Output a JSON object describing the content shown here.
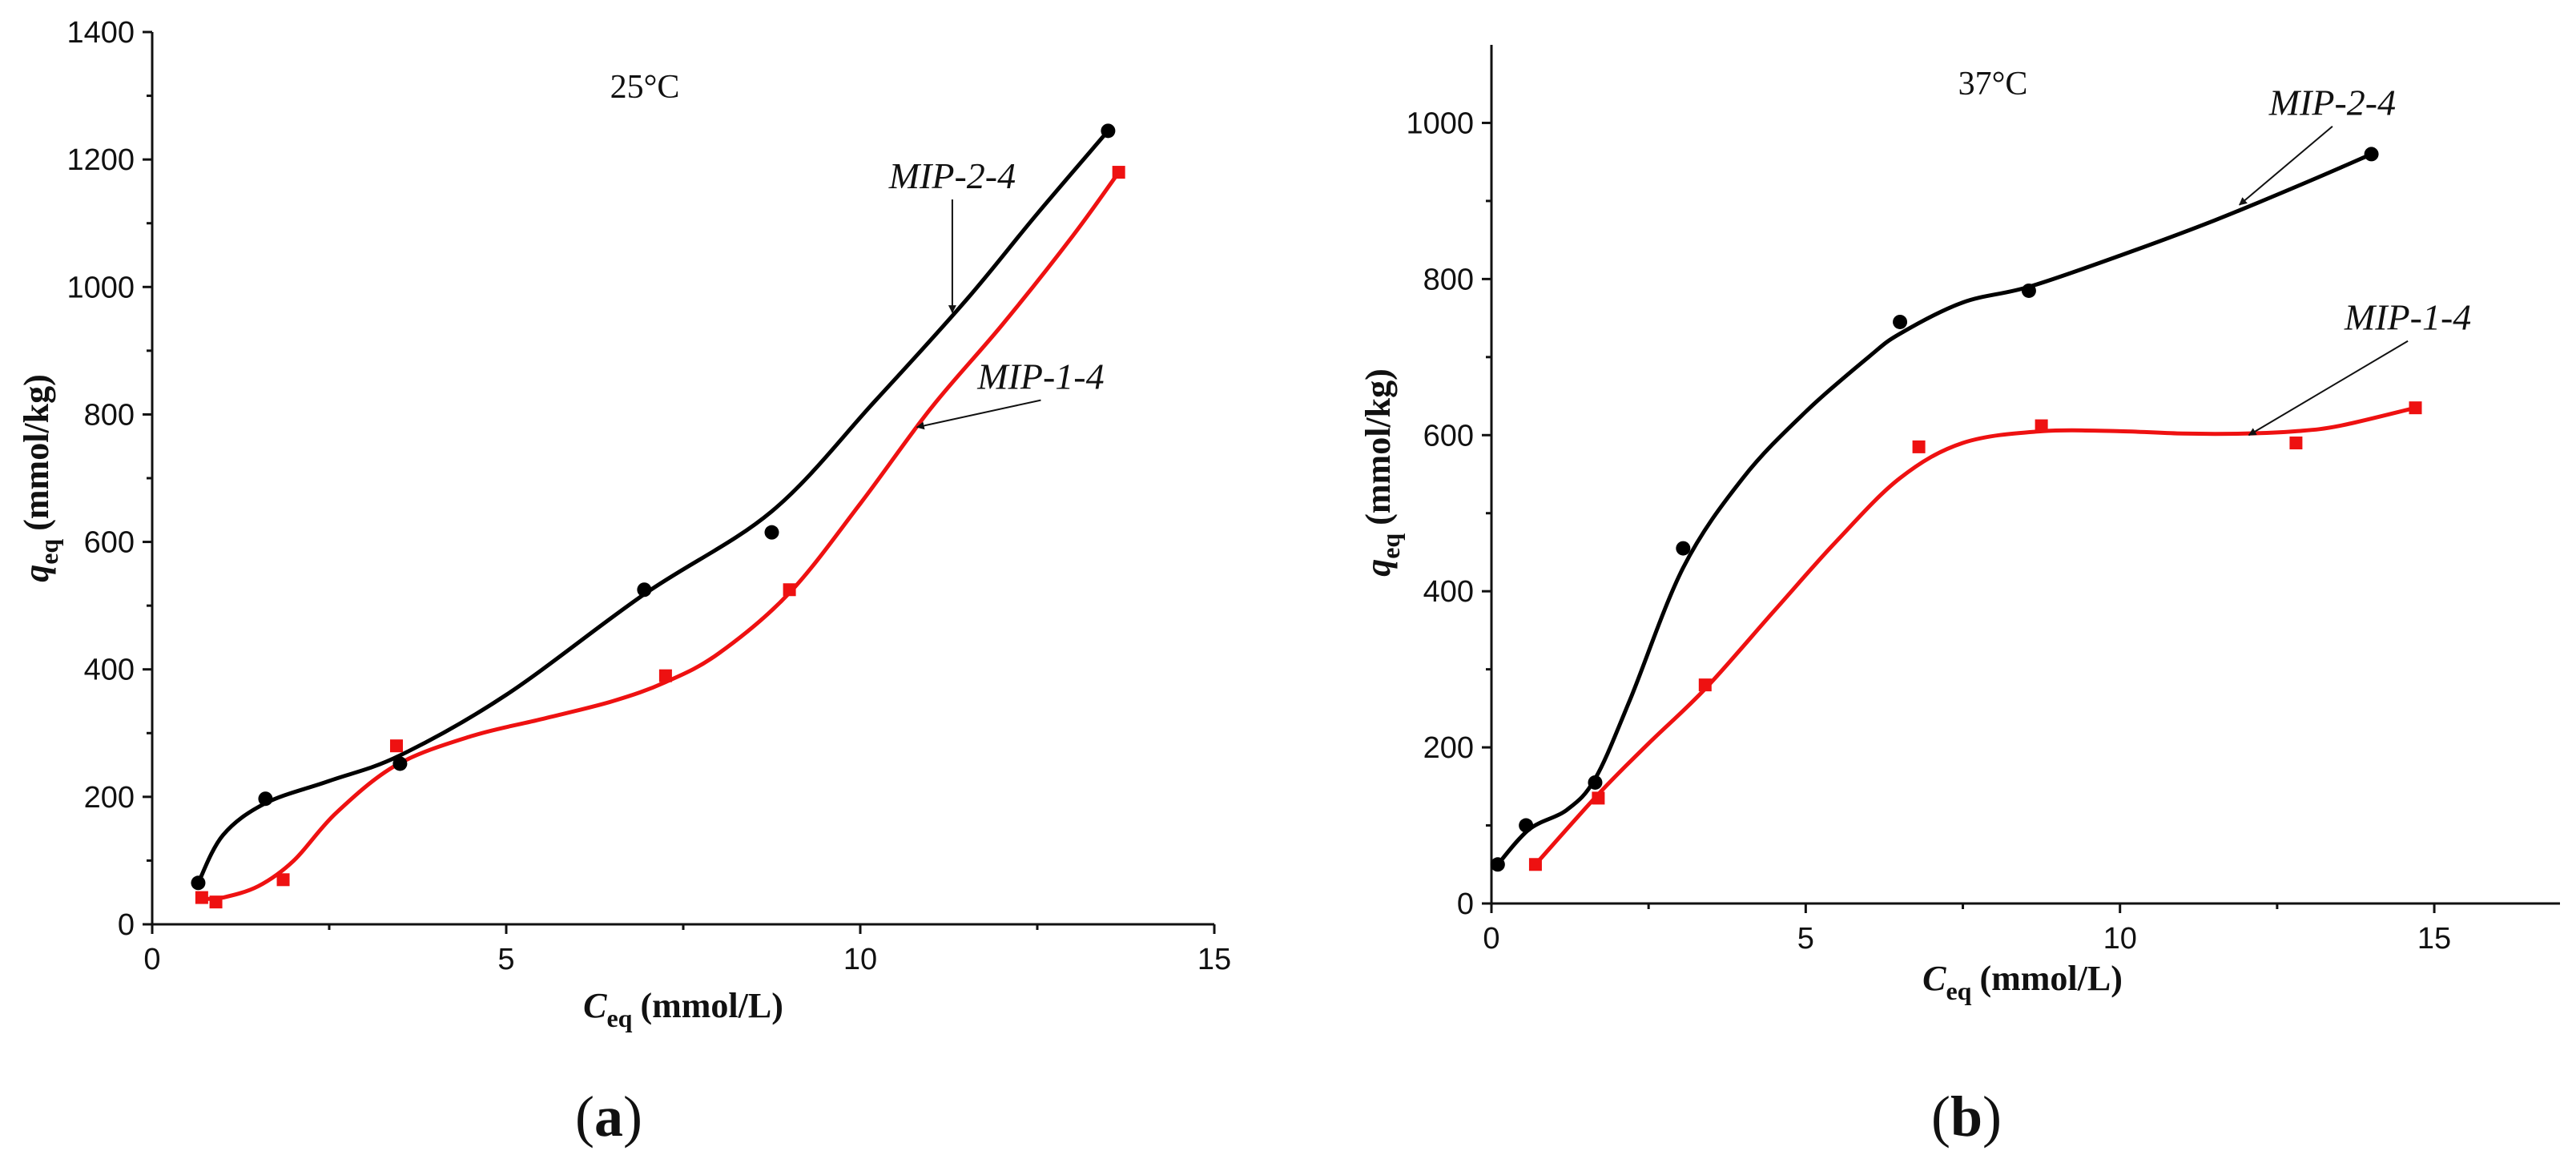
{
  "chart_data": [
    {
      "type": "scatter",
      "panel_label_open": "(",
      "panel_label_letter": "a",
      "panel_label_close": ")",
      "temperature": "25°C",
      "xlabel_symbol": "C",
      "xlabel_sub": "eq",
      "xlabel_units": "(mmol/L)",
      "ylabel_symbol": "q",
      "ylabel_sub": "eq",
      "ylabel_units": "(mmol/kg)",
      "xlim": [
        0,
        15
      ],
      "ylim": [
        0,
        1400
      ],
      "xticks": [
        0,
        5,
        10,
        15
      ],
      "yticks": [
        0,
        200,
        400,
        600,
        800,
        1000,
        1200,
        1400
      ],
      "series": [
        {
          "name": "MIP-2-4",
          "color": "#000000",
          "marker": "circle",
          "points": [
            [
              0.65,
              65
            ],
            [
              1.6,
              197
            ],
            [
              3.5,
              252
            ],
            [
              6.95,
              525
            ],
            [
              8.75,
              615
            ],
            [
              13.5,
              1245
            ]
          ],
          "fit": [
            [
              0.65,
              65
            ],
            [
              1.0,
              140
            ],
            [
              1.6,
              190
            ],
            [
              2.5,
              225
            ],
            [
              3.5,
              265
            ],
            [
              5.0,
              360
            ],
            [
              6.95,
              518
            ],
            [
              8.75,
              648
            ],
            [
              10.2,
              820
            ],
            [
              11.5,
              980
            ],
            [
              12.5,
              1115
            ],
            [
              13.5,
              1245
            ]
          ]
        },
        {
          "name": "MIP-1-4",
          "color": "#ee1111",
          "marker": "square",
          "points": [
            [
              0.7,
              42
            ],
            [
              0.9,
              35
            ],
            [
              1.85,
              70
            ],
            [
              3.45,
              280
            ],
            [
              7.25,
              390
            ],
            [
              9.0,
              525
            ],
            [
              13.65,
              1180
            ]
          ],
          "fit": [
            [
              0.7,
              40
            ],
            [
              1.0,
              42
            ],
            [
              1.5,
              60
            ],
            [
              2.0,
              100
            ],
            [
              2.6,
              175
            ],
            [
              3.45,
              250
            ],
            [
              4.5,
              295
            ],
            [
              5.5,
              322
            ],
            [
              6.5,
              350
            ],
            [
              7.25,
              380
            ],
            [
              8.0,
              425
            ],
            [
              9.0,
              520
            ],
            [
              10.0,
              660
            ],
            [
              11.0,
              810
            ],
            [
              12.0,
              940
            ],
            [
              13.0,
              1080
            ],
            [
              13.65,
              1180
            ]
          ]
        }
      ],
      "annotations": [
        {
          "text": "MIP-2-4",
          "series": "MIP-2-4",
          "label_at": [
            11.3,
            1155
          ],
          "arrow_to": [
            11.3,
            960
          ]
        },
        {
          "text": "MIP-1-4",
          "series": "MIP-1-4",
          "label_at": [
            12.55,
            840
          ],
          "arrow_to": [
            10.8,
            780
          ]
        }
      ]
    },
    {
      "type": "scatter",
      "panel_label_open": "(",
      "panel_label_letter": "b",
      "panel_label_close": ")",
      "temperature": "37°C",
      "xlabel_symbol": "C",
      "xlabel_sub": "eq",
      "xlabel_units": "(mmol/L)",
      "ylabel_symbol": "q",
      "ylabel_sub": "eq",
      "ylabel_units": "(mmol/kg)",
      "xlim": [
        0,
        17
      ],
      "ylim": [
        0,
        1100
      ],
      "xticks": [
        0,
        5,
        10,
        15
      ],
      "yticks": [
        0,
        200,
        400,
        600,
        800,
        1000
      ],
      "series": [
        {
          "name": "MIP-2-4",
          "color": "#000000",
          "marker": "circle",
          "points": [
            [
              0.1,
              50
            ],
            [
              0.55,
              100
            ],
            [
              1.65,
              155
            ],
            [
              3.05,
              455
            ],
            [
              6.5,
              745
            ],
            [
              8.55,
              785
            ],
            [
              14.0,
              960
            ]
          ],
          "fit": [
            [
              0.1,
              50
            ],
            [
              0.6,
              95
            ],
            [
              1.2,
              120
            ],
            [
              1.65,
              160
            ],
            [
              2.2,
              260
            ],
            [
              3.05,
              430
            ],
            [
              4.0,
              545
            ],
            [
              5.0,
              630
            ],
            [
              6.0,
              700
            ],
            [
              6.5,
              730
            ],
            [
              7.5,
              770
            ],
            [
              8.55,
              790
            ],
            [
              10.0,
              830
            ],
            [
              11.5,
              875
            ],
            [
              13.0,
              925
            ],
            [
              14.0,
              960
            ]
          ]
        },
        {
          "name": "MIP-1-4",
          "color": "#ee1111",
          "marker": "square",
          "points": [
            [
              0.7,
              50
            ],
            [
              1.7,
              135
            ],
            [
              3.4,
              280
            ],
            [
              6.8,
              585
            ],
            [
              8.75,
              612
            ],
            [
              12.8,
              590
            ],
            [
              14.7,
              635
            ]
          ],
          "fit": [
            [
              0.7,
              50
            ],
            [
              1.7,
              140
            ],
            [
              2.5,
              205
            ],
            [
              3.4,
              275
            ],
            [
              4.5,
              375
            ],
            [
              5.5,
              465
            ],
            [
              6.5,
              545
            ],
            [
              7.5,
              590
            ],
            [
              8.75,
              605
            ],
            [
              10.0,
              605
            ],
            [
              11.0,
              602
            ],
            [
              12.0,
              602
            ],
            [
              12.8,
              605
            ],
            [
              13.5,
              612
            ],
            [
              14.7,
              635
            ]
          ]
        }
      ],
      "annotations": [
        {
          "text": "MIP-2-4",
          "series": "MIP-2-4",
          "label_at": [
            13.38,
            1010
          ],
          "arrow_to": [
            11.9,
            895
          ]
        },
        {
          "text": "MIP-1-4",
          "series": "MIP-1-4",
          "label_at": [
            14.58,
            735
          ],
          "arrow_to": [
            12.05,
            600
          ]
        }
      ]
    }
  ]
}
